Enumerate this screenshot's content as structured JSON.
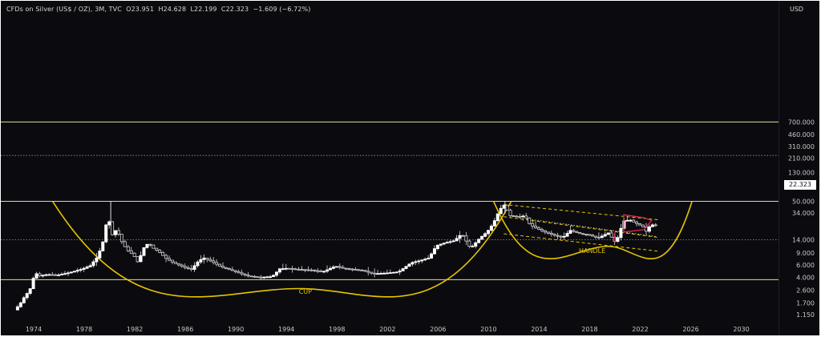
{
  "chart_data": {
    "type": "candlestick",
    "title": "CFDs on Silver (US$ / OZ), 3M, TVC  O23.951  H24.628  L22.199  C22.323  −1.609 (−6.72%)",
    "ylabel": "USD",
    "yscale": "log",
    "ylim": [
      1.1,
      1000
    ],
    "xlim": [
      1972.5,
      2032
    ],
    "y_ticks": [
      "700.000",
      "460.000",
      "310.000",
      "210.000",
      "130.000",
      "80.000",
      "50.000",
      "34.000",
      "22.323",
      "14.000",
      "9.000",
      "6.000",
      "4.000",
      "2.600",
      "1.700",
      "1.150"
    ],
    "x_ticks": [
      "1974",
      "1978",
      "1982",
      "1986",
      "1990",
      "1994",
      "1998",
      "2002",
      "2006",
      "2010",
      "2014",
      "2018",
      "2022",
      "2026",
      "2030"
    ],
    "last_price_label": "22.323",
    "annotations": {
      "cup": "CUP",
      "handle": "HANDLE"
    },
    "horizontal_levels": [
      {
        "value": 700,
        "style": "solid"
      },
      {
        "value": 230,
        "style": "dotted"
      },
      {
        "value": 50,
        "style": "solid"
      },
      {
        "value": 14,
        "style": "dotted"
      },
      {
        "value": 3.7,
        "style": "solid"
      }
    ],
    "price_path": [
      [
        1972.6,
        1.35
      ],
      [
        1973.0,
        1.6
      ],
      [
        1973.4,
        2.1
      ],
      [
        1973.8,
        2.6
      ],
      [
        1974.0,
        3.2
      ],
      [
        1974.2,
        4.7
      ],
      [
        1974.6,
        4.2
      ],
      [
        1975.2,
        4.4
      ],
      [
        1976.0,
        4.3
      ],
      [
        1977.0,
        4.7
      ],
      [
        1978.0,
        5.3
      ],
      [
        1978.6,
        5.9
      ],
      [
        1979.2,
        8.0
      ],
      [
        1979.6,
        13.0
      ],
      [
        1980.0,
        32.0
      ],
      [
        1980.3,
        16.0
      ],
      [
        1980.7,
        20.0
      ],
      [
        1981.0,
        14.0
      ],
      [
        1981.5,
        10.0
      ],
      [
        1982.0,
        8.5
      ],
      [
        1982.4,
        6.5
      ],
      [
        1982.8,
        10.5
      ],
      [
        1983.2,
        12.5
      ],
      [
        1983.6,
        10.5
      ],
      [
        1984.0,
        9.5
      ],
      [
        1984.6,
        7.5
      ],
      [
        1985.2,
        6.5
      ],
      [
        1986.0,
        5.6
      ],
      [
        1986.6,
        5.2
      ],
      [
        1987.2,
        7.0
      ],
      [
        1987.6,
        7.6
      ],
      [
        1988.2,
        6.8
      ],
      [
        1989.0,
        5.6
      ],
      [
        1990.0,
        4.9
      ],
      [
        1991.0,
        4.2
      ],
      [
        1992.0,
        4.0
      ],
      [
        1993.0,
        4.1
      ],
      [
        1993.6,
        5.3
      ],
      [
        1994.2,
        5.4
      ],
      [
        1995.0,
        5.2
      ],
      [
        1996.0,
        5.1
      ],
      [
        1997.0,
        4.8
      ],
      [
        1998.0,
        5.8
      ],
      [
        1998.6,
        5.4
      ],
      [
        1999.4,
        5.2
      ],
      [
        2000.2,
        5.0
      ],
      [
        2001.0,
        4.5
      ],
      [
        2002.0,
        4.6
      ],
      [
        2003.0,
        4.8
      ],
      [
        2004.0,
        6.5
      ],
      [
        2004.6,
        6.9
      ],
      [
        2005.4,
        7.6
      ],
      [
        2006.0,
        11.5
      ],
      [
        2006.6,
        12.5
      ],
      [
        2007.4,
        13.5
      ],
      [
        2008.0,
        17.0
      ],
      [
        2008.7,
        10.5
      ],
      [
        2009.4,
        14.5
      ],
      [
        2010.0,
        18.0
      ],
      [
        2010.5,
        24.0
      ],
      [
        2011.0,
        38.0
      ],
      [
        2011.4,
        45.0
      ],
      [
        2011.8,
        31.0
      ],
      [
        2012.5,
        30.0
      ],
      [
        2013.0,
        31.0
      ],
      [
        2013.4,
        23.0
      ],
      [
        2014.0,
        20.0
      ],
      [
        2014.6,
        18.0
      ],
      [
        2015.4,
        16.0
      ],
      [
        2016.0,
        15.0
      ],
      [
        2016.6,
        19.0
      ],
      [
        2017.4,
        17.0
      ],
      [
        2018.0,
        16.5
      ],
      [
        2018.8,
        14.8
      ],
      [
        2019.6,
        17.5
      ],
      [
        2020.2,
        12.5
      ],
      [
        2020.5,
        18.0
      ],
      [
        2020.8,
        26.0
      ],
      [
        2021.3,
        27.0
      ],
      [
        2021.8,
        24.0
      ],
      [
        2022.3,
        22.0
      ],
      [
        2022.6,
        18.5
      ],
      [
        2023.0,
        23.5
      ],
      [
        2023.2,
        22.3
      ]
    ]
  }
}
